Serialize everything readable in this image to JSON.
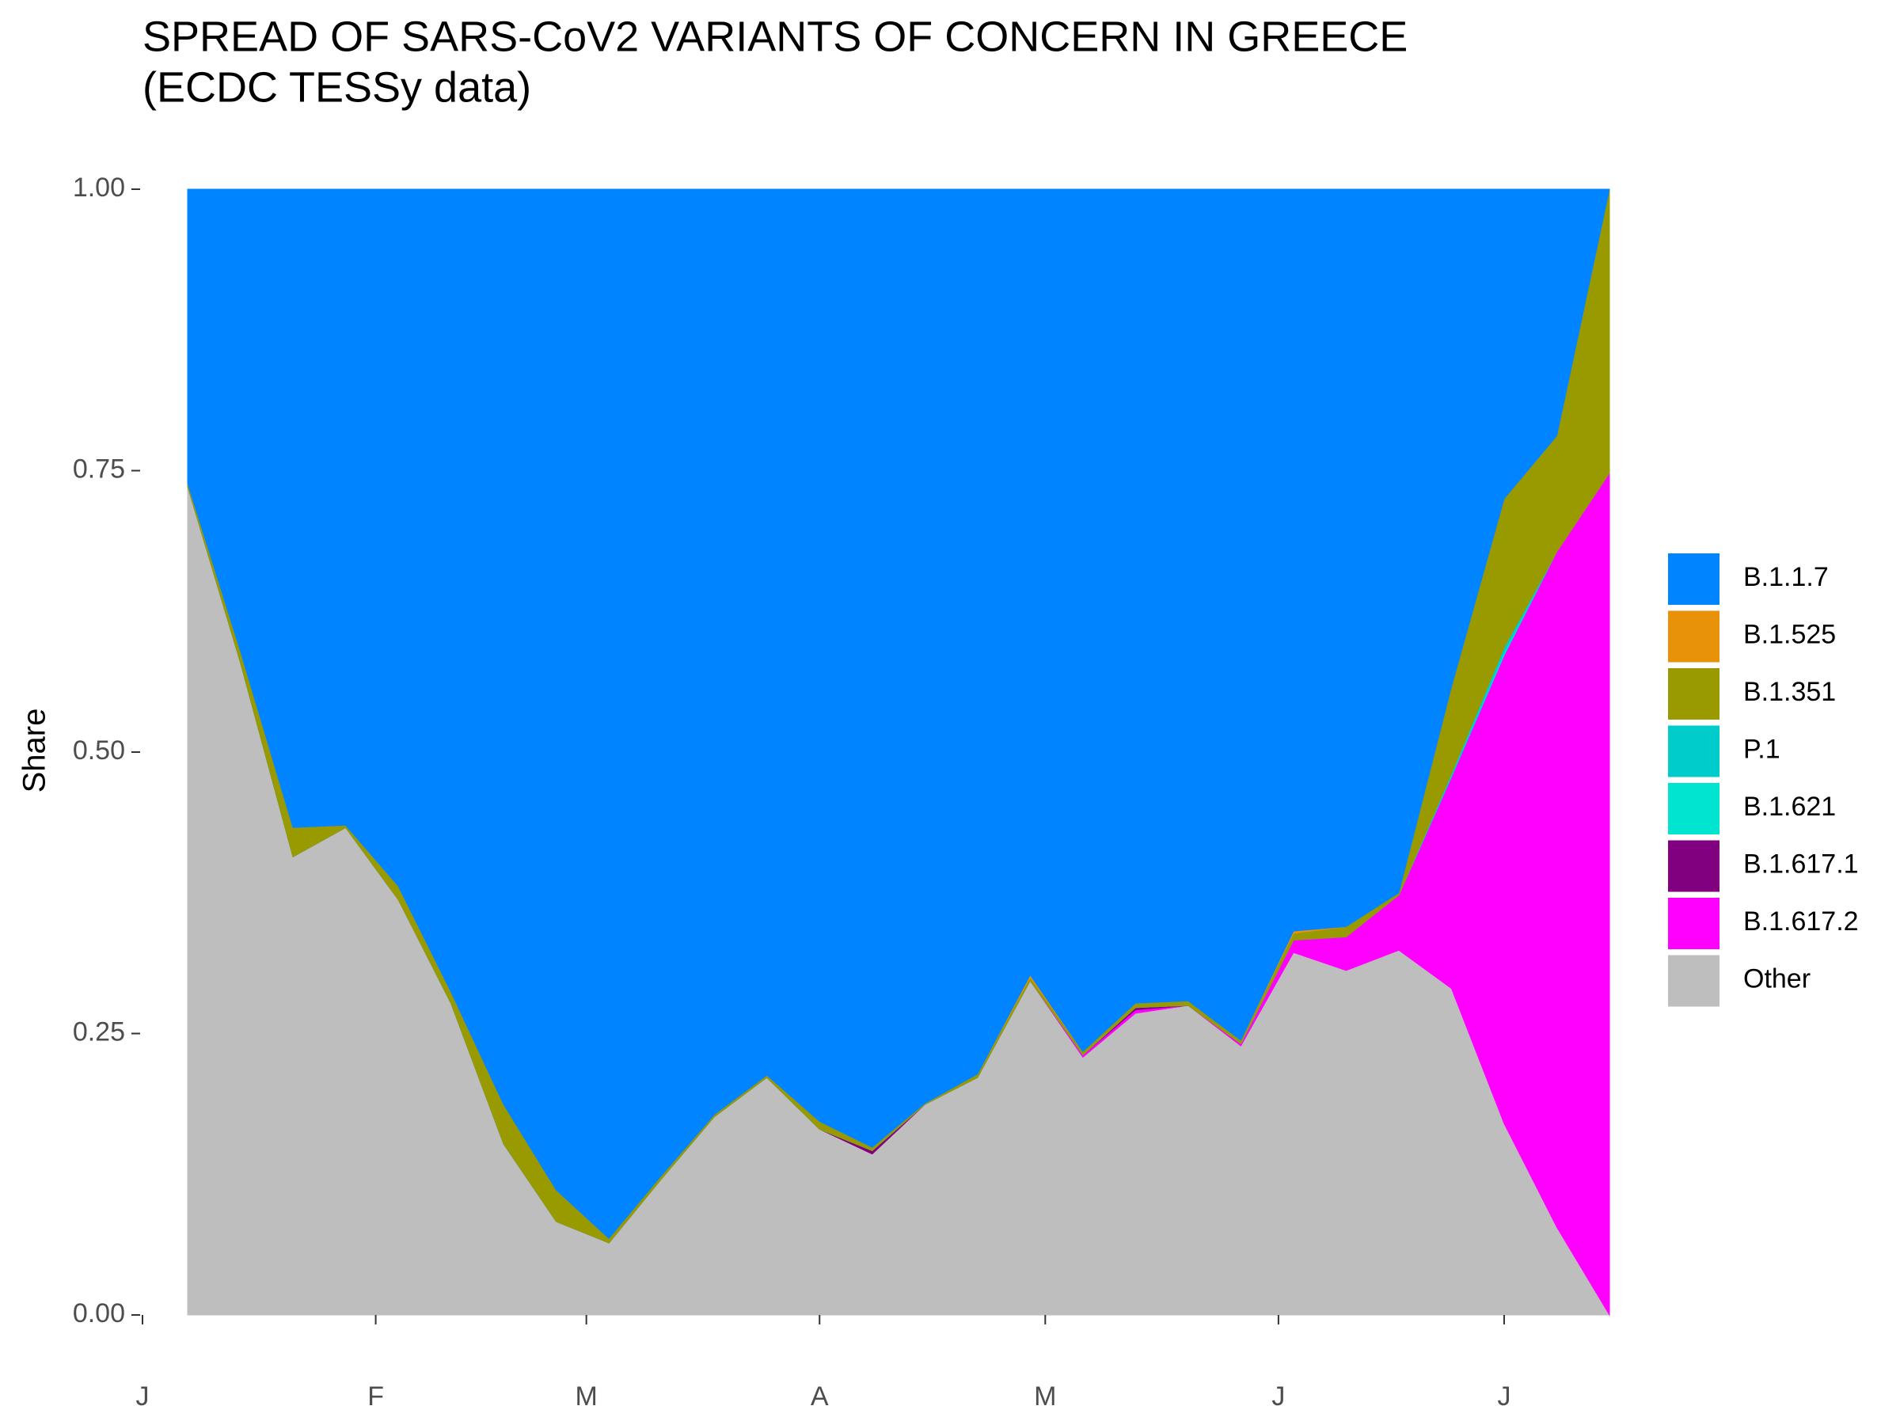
{
  "chart_data": {
    "type": "stacked_area",
    "title": [
      "SPREAD OF SARS-CoV2 VARIANTS OF CONCERN IN GREECE",
      "(ECDC TESSy data)"
    ],
    "y_label": "Share",
    "x": [
      6,
      13,
      20,
      27,
      34,
      41,
      48,
      55,
      62,
      69,
      76,
      83,
      90,
      97,
      104,
      111,
      118,
      125,
      132,
      139,
      146,
      153,
      160,
      167,
      174,
      181,
      188,
      195
    ],
    "xlim": [
      0,
      195
    ],
    "xticks": [
      {
        "value": 0,
        "label": "J"
      },
      {
        "value": 31,
        "label": "F"
      },
      {
        "value": 59,
        "label": "M"
      },
      {
        "value": 90,
        "label": "A"
      },
      {
        "value": 120,
        "label": "M"
      },
      {
        "value": 151,
        "label": "J"
      },
      {
        "value": 181,
        "label": "J"
      }
    ],
    "ylim": [
      0,
      1
    ],
    "yticks": [
      {
        "value": 0,
        "label": "0.00"
      },
      {
        "value": 0.25,
        "label": "0.25"
      },
      {
        "value": 0.5,
        "label": "0.50"
      },
      {
        "value": 0.75,
        "label": "0.75"
      },
      {
        "value": 1,
        "label": "1.00"
      }
    ],
    "grid": false,
    "legend": "right",
    "series": [
      {
        "name": "B.1.1.7",
        "color": "#0084ff",
        "values": [
          0.261,
          0.41,
          0.567,
          0.565,
          0.619,
          0.713,
          0.813,
          0.889,
          0.932,
          0.876,
          0.822,
          0.787,
          0.828,
          0.851,
          0.812,
          0.786,
          0.698,
          0.766,
          0.723,
          0.721,
          0.756,
          0.659,
          0.655,
          0.625,
          0.442,
          0.275,
          0.219,
          0
        ]
      },
      {
        "name": "B.1.525",
        "color": "#e8920a",
        "values": [
          0,
          0,
          0,
          0,
          0,
          0,
          0,
          0,
          0,
          0,
          0,
          0,
          0,
          0,
          0,
          0,
          0.002,
          0,
          0,
          0,
          0,
          0.002,
          0,
          0,
          0,
          0,
          0,
          0
        ]
      },
      {
        "name": "B.1.351",
        "color": "#999900",
        "values": [
          0.003,
          0.01,
          0.026,
          0.002,
          0.012,
          0.01,
          0.035,
          0.028,
          0.004,
          0.003,
          0.002,
          0.002,
          0.007,
          0.003,
          0.001,
          0.003,
          0.003,
          0.003,
          0.004,
          0.004,
          0.003,
          0.006,
          0.009,
          0.002,
          0.077,
          0.132,
          0.103,
          0.252
        ]
      },
      {
        "name": "P.1",
        "color": "#00cccc",
        "values": [
          0,
          0,
          0,
          0,
          0,
          0,
          0,
          0,
          0,
          0,
          0,
          0,
          0,
          0,
          0,
          0,
          0,
          0,
          0,
          0,
          0,
          0,
          0,
          0,
          0.003,
          0.005,
          0,
          0
        ]
      },
      {
        "name": "B.1.621",
        "color": "#00e5d0",
        "values": [
          0,
          0,
          0,
          0,
          0,
          0,
          0,
          0,
          0,
          0,
          0,
          0,
          0,
          0,
          0,
          0,
          0,
          0,
          0,
          0,
          0,
          0,
          0,
          0,
          0,
          0.002,
          0,
          0
        ]
      },
      {
        "name": "B.1.617.1",
        "color": "#800080",
        "values": [
          0,
          0,
          0,
          0,
          0,
          0,
          0,
          0,
          0,
          0,
          0,
          0,
          0,
          0.003,
          0,
          0,
          0,
          0,
          0.002,
          0,
          0,
          0,
          0,
          0,
          0,
          0,
          0,
          0
        ]
      },
      {
        "name": "B.1.617.2",
        "color": "#ff00ff",
        "values": [
          0,
          0,
          0,
          0,
          0,
          0,
          0,
          0,
          0,
          0,
          0,
          0,
          0,
          0,
          0,
          0,
          0,
          0.002,
          0.003,
          0,
          0.002,
          0.011,
          0.03,
          0.049,
          0.188,
          0.416,
          0.6,
          0.748
        ]
      },
      {
        "name": "Other",
        "color": "#bebebe",
        "values": [
          0.736,
          0.58,
          0.407,
          0.433,
          0.369,
          0.277,
          0.152,
          0.083,
          0.064,
          0.121,
          0.176,
          0.211,
          0.165,
          0.143,
          0.187,
          0.211,
          0.297,
          0.229,
          0.268,
          0.275,
          0.239,
          0.322,
          0.306,
          0.324,
          0.29,
          0.17,
          0.078,
          0
        ]
      }
    ]
  }
}
